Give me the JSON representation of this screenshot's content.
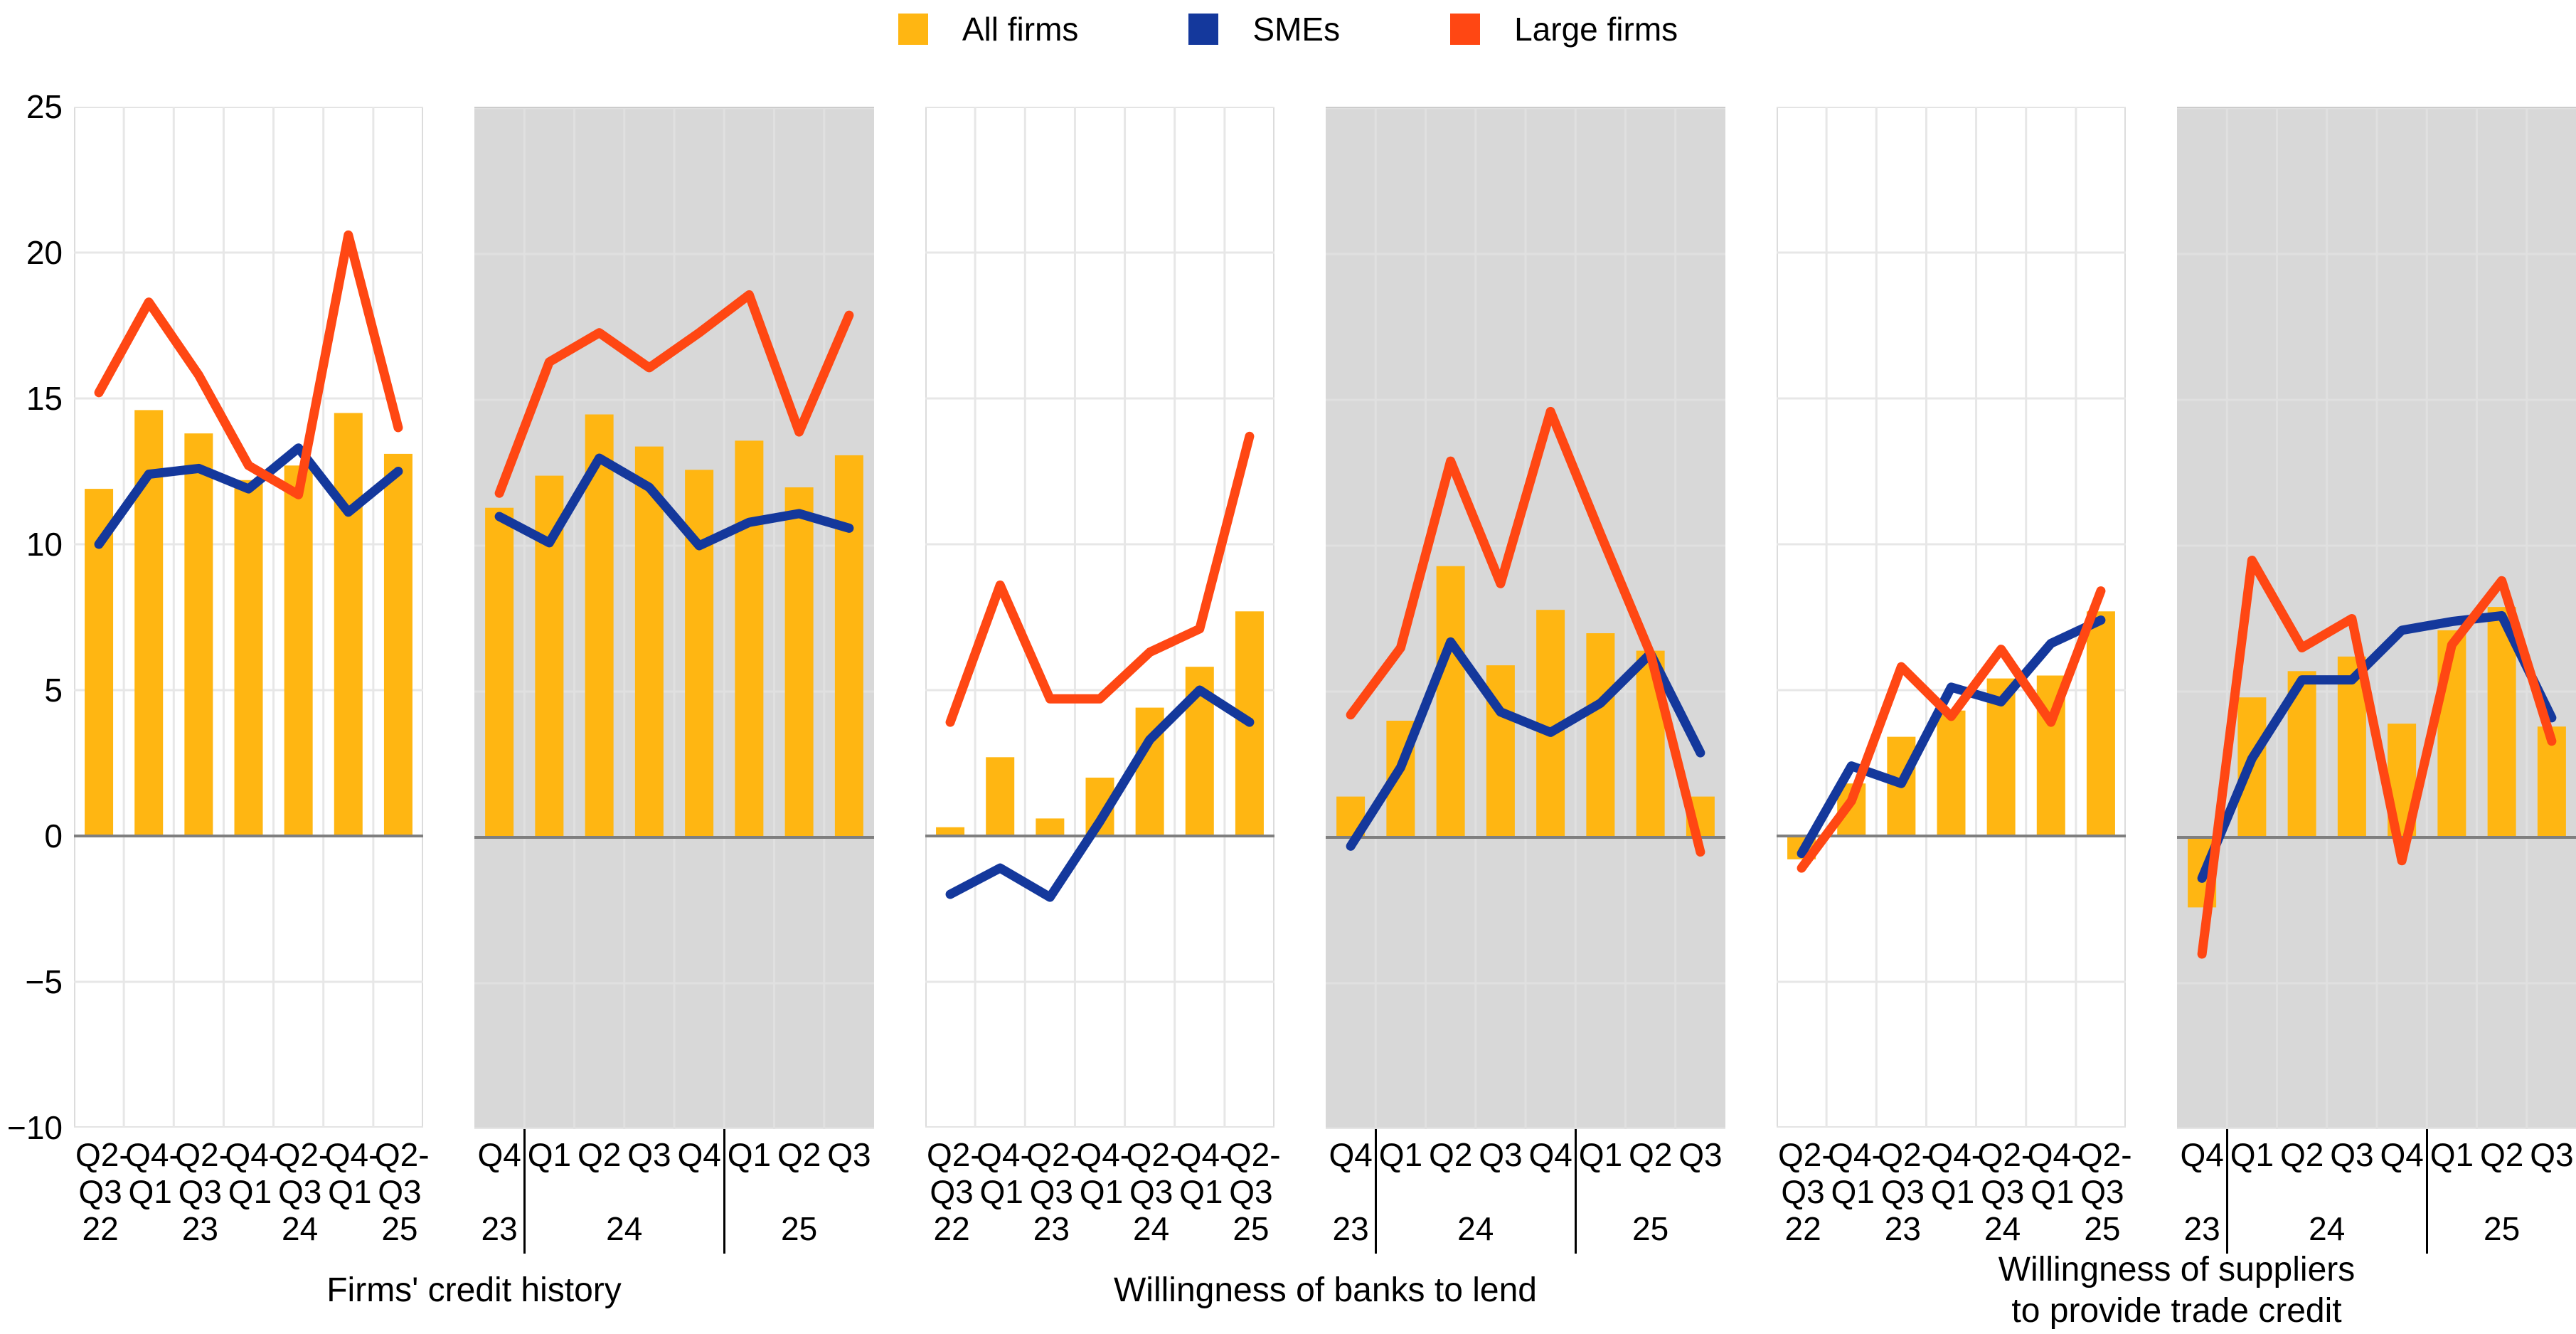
{
  "legend": {
    "items": [
      {
        "label": "All firms",
        "color": "#FFB612",
        "type": "bar"
      },
      {
        "label": "SMEs",
        "color": "#14389C",
        "type": "line"
      },
      {
        "label": "Large firms",
        "color": "#FF4713",
        "type": "line"
      }
    ]
  },
  "y_axis": {
    "ticks": [
      "25",
      "20",
      "15",
      "10",
      "5",
      "0",
      "−5",
      "−10"
    ],
    "values": [
      25,
      20,
      15,
      10,
      5,
      0,
      -5,
      -10
    ]
  },
  "chart_data": {
    "type": "bar+line combo, small multiples",
    "ylim": [
      -10,
      25
    ],
    "grid_step": 5,
    "legend_position": "top-center",
    "grid": "on",
    "series_meta": [
      {
        "key": "all_firms",
        "label": "All firms",
        "type": "bar",
        "color": "#FFB612"
      },
      {
        "key": "smes",
        "label": "SMEs",
        "type": "line",
        "color": "#14389C"
      },
      {
        "key": "large_firms",
        "label": "Large firms",
        "type": "line",
        "color": "#FF4713"
      }
    ],
    "groups": [
      {
        "title_lines": [
          "Firms' credit history"
        ],
        "panels": [
          {
            "id": "credit-history-semiannual",
            "background": "white",
            "labels_line1": [
              "Q2-",
              "Q4-",
              "Q2-",
              "Q4-",
              "Q2-",
              "Q4-",
              "Q2-"
            ],
            "labels_line2": [
              "Q3",
              "Q1",
              "Q3",
              "Q1",
              "Q3",
              "Q1",
              "Q3"
            ],
            "years": [
              {
                "label": "22",
                "from": 0,
                "to": 0
              },
              {
                "label": "23",
                "from": 2,
                "to": 2
              },
              {
                "label": "24",
                "from": 4,
                "to": 4
              },
              {
                "label": "25",
                "from": 6,
                "to": 6
              }
            ],
            "separators": [],
            "all_firms": [
              11.9,
              14.6,
              13.8,
              12.2,
              12.7,
              14.5,
              13.1
            ],
            "smes": [
              10.0,
              12.4,
              12.6,
              11.9,
              13.3,
              11.1,
              12.5
            ],
            "large_firms": [
              15.2,
              18.3,
              15.8,
              12.7,
              11.7,
              20.6,
              14.0
            ]
          },
          {
            "id": "credit-history-quarterly",
            "background": "gray",
            "labels_line1": [
              "Q4",
              "Q1",
              "Q2",
              "Q3",
              "Q4",
              "Q1",
              "Q2",
              "Q3"
            ],
            "labels_line2": [],
            "years": [
              {
                "label": "23",
                "from": 0,
                "to": 0
              },
              {
                "label": "24",
                "from": 1,
                "to": 4
              },
              {
                "label": "25",
                "from": 5,
                "to": 7
              }
            ],
            "separators": [
              1,
              5
            ],
            "all_firms": [
              11.3,
              12.4,
              14.5,
              13.4,
              12.6,
              13.6,
              12.0,
              13.1
            ],
            "smes": [
              11.0,
              10.1,
              13.0,
              12.0,
              10.0,
              10.8,
              11.1,
              10.6
            ],
            "large_firms": [
              11.8,
              16.3,
              17.3,
              16.1,
              17.3,
              18.6,
              13.9,
              17.9
            ]
          }
        ]
      },
      {
        "title_lines": [
          "Willingness of banks to lend"
        ],
        "panels": [
          {
            "id": "banks-semiannual",
            "background": "white",
            "labels_line1": [
              "Q2-",
              "Q4-",
              "Q2-",
              "Q4-",
              "Q2-",
              "Q4-",
              "Q2-"
            ],
            "labels_line2": [
              "Q3",
              "Q1",
              "Q3",
              "Q1",
              "Q3",
              "Q1",
              "Q3"
            ],
            "years": [
              {
                "label": "22",
                "from": 0,
                "to": 0
              },
              {
                "label": "23",
                "from": 2,
                "to": 2
              },
              {
                "label": "24",
                "from": 4,
                "to": 4
              },
              {
                "label": "25",
                "from": 6,
                "to": 6
              }
            ],
            "separators": [],
            "all_firms": [
              0.3,
              2.7,
              0.6,
              2.0,
              4.4,
              5.8,
              7.7
            ],
            "smes": [
              -2.0,
              -1.1,
              -2.1,
              0.5,
              3.3,
              5.0,
              3.9
            ],
            "large_firms": [
              3.9,
              8.6,
              4.7,
              4.7,
              6.3,
              7.1,
              13.7
            ]
          },
          {
            "id": "banks-quarterly",
            "background": "gray",
            "labels_line1": [
              "Q4",
              "Q1",
              "Q2",
              "Q3",
              "Q4",
              "Q1",
              "Q2",
              "Q3"
            ],
            "labels_line2": [],
            "years": [
              {
                "label": "23",
                "from": 0,
                "to": 0
              },
              {
                "label": "24",
                "from": 1,
                "to": 4
              },
              {
                "label": "25",
                "from": 5,
                "to": 7
              }
            ],
            "separators": [
              1,
              5
            ],
            "all_firms": [
              1.4,
              4.0,
              9.3,
              5.9,
              7.8,
              7.0,
              6.4,
              1.4
            ],
            "smes": [
              -0.3,
              2.4,
              6.7,
              4.3,
              3.6,
              4.6,
              6.3,
              2.9
            ],
            "large_firms": [
              4.2,
              6.5,
              12.9,
              8.7,
              14.6,
              10.4,
              6.3,
              -0.5
            ]
          }
        ]
      },
      {
        "title_lines": [
          "Willingness of suppliers",
          "to provide trade credit"
        ],
        "panels": [
          {
            "id": "suppliers-semiannual",
            "background": "white",
            "labels_line1": [
              "Q2-",
              "Q4-",
              "Q2-",
              "Q4-",
              "Q2-",
              "Q4-",
              "Q2-"
            ],
            "labels_line2": [
              "Q3",
              "Q1",
              "Q3",
              "Q1",
              "Q3",
              "Q1",
              "Q3"
            ],
            "years": [
              {
                "label": "22",
                "from": 0,
                "to": 0
              },
              {
                "label": "23",
                "from": 2,
                "to": 2
              },
              {
                "label": "24",
                "from": 4,
                "to": 4
              },
              {
                "label": "25",
                "from": 6,
                "to": 6
              }
            ],
            "separators": [],
            "all_firms": [
              -0.8,
              1.8,
              3.4,
              4.3,
              5.4,
              5.5,
              7.7
            ],
            "smes": [
              -0.6,
              2.4,
              1.8,
              5.1,
              4.6,
              6.6,
              7.4
            ],
            "large_firms": [
              -1.1,
              1.2,
              5.8,
              4.1,
              6.4,
              3.9,
              8.4
            ]
          },
          {
            "id": "suppliers-quarterly",
            "background": "gray",
            "labels_line1": [
              "Q4",
              "Q1",
              "Q2",
              "Q3",
              "Q4",
              "Q1",
              "Q2",
              "Q3"
            ],
            "labels_line2": [],
            "years": [
              {
                "label": "23",
                "from": 0,
                "to": 0
              },
              {
                "label": "24",
                "from": 1,
                "to": 4
              },
              {
                "label": "25",
                "from": 5,
                "to": 7
              }
            ],
            "separators": [
              1,
              5
            ],
            "all_firms": [
              -2.4,
              4.8,
              5.7,
              6.2,
              3.9,
              7.1,
              7.9,
              3.8
            ],
            "smes": [
              -1.4,
              2.7,
              5.4,
              5.4,
              7.1,
              7.4,
              7.6,
              4.1
            ],
            "large_firms": [
              -4.0,
              9.5,
              6.5,
              7.5,
              -0.8,
              6.6,
              8.8,
              3.3
            ]
          }
        ]
      }
    ]
  }
}
